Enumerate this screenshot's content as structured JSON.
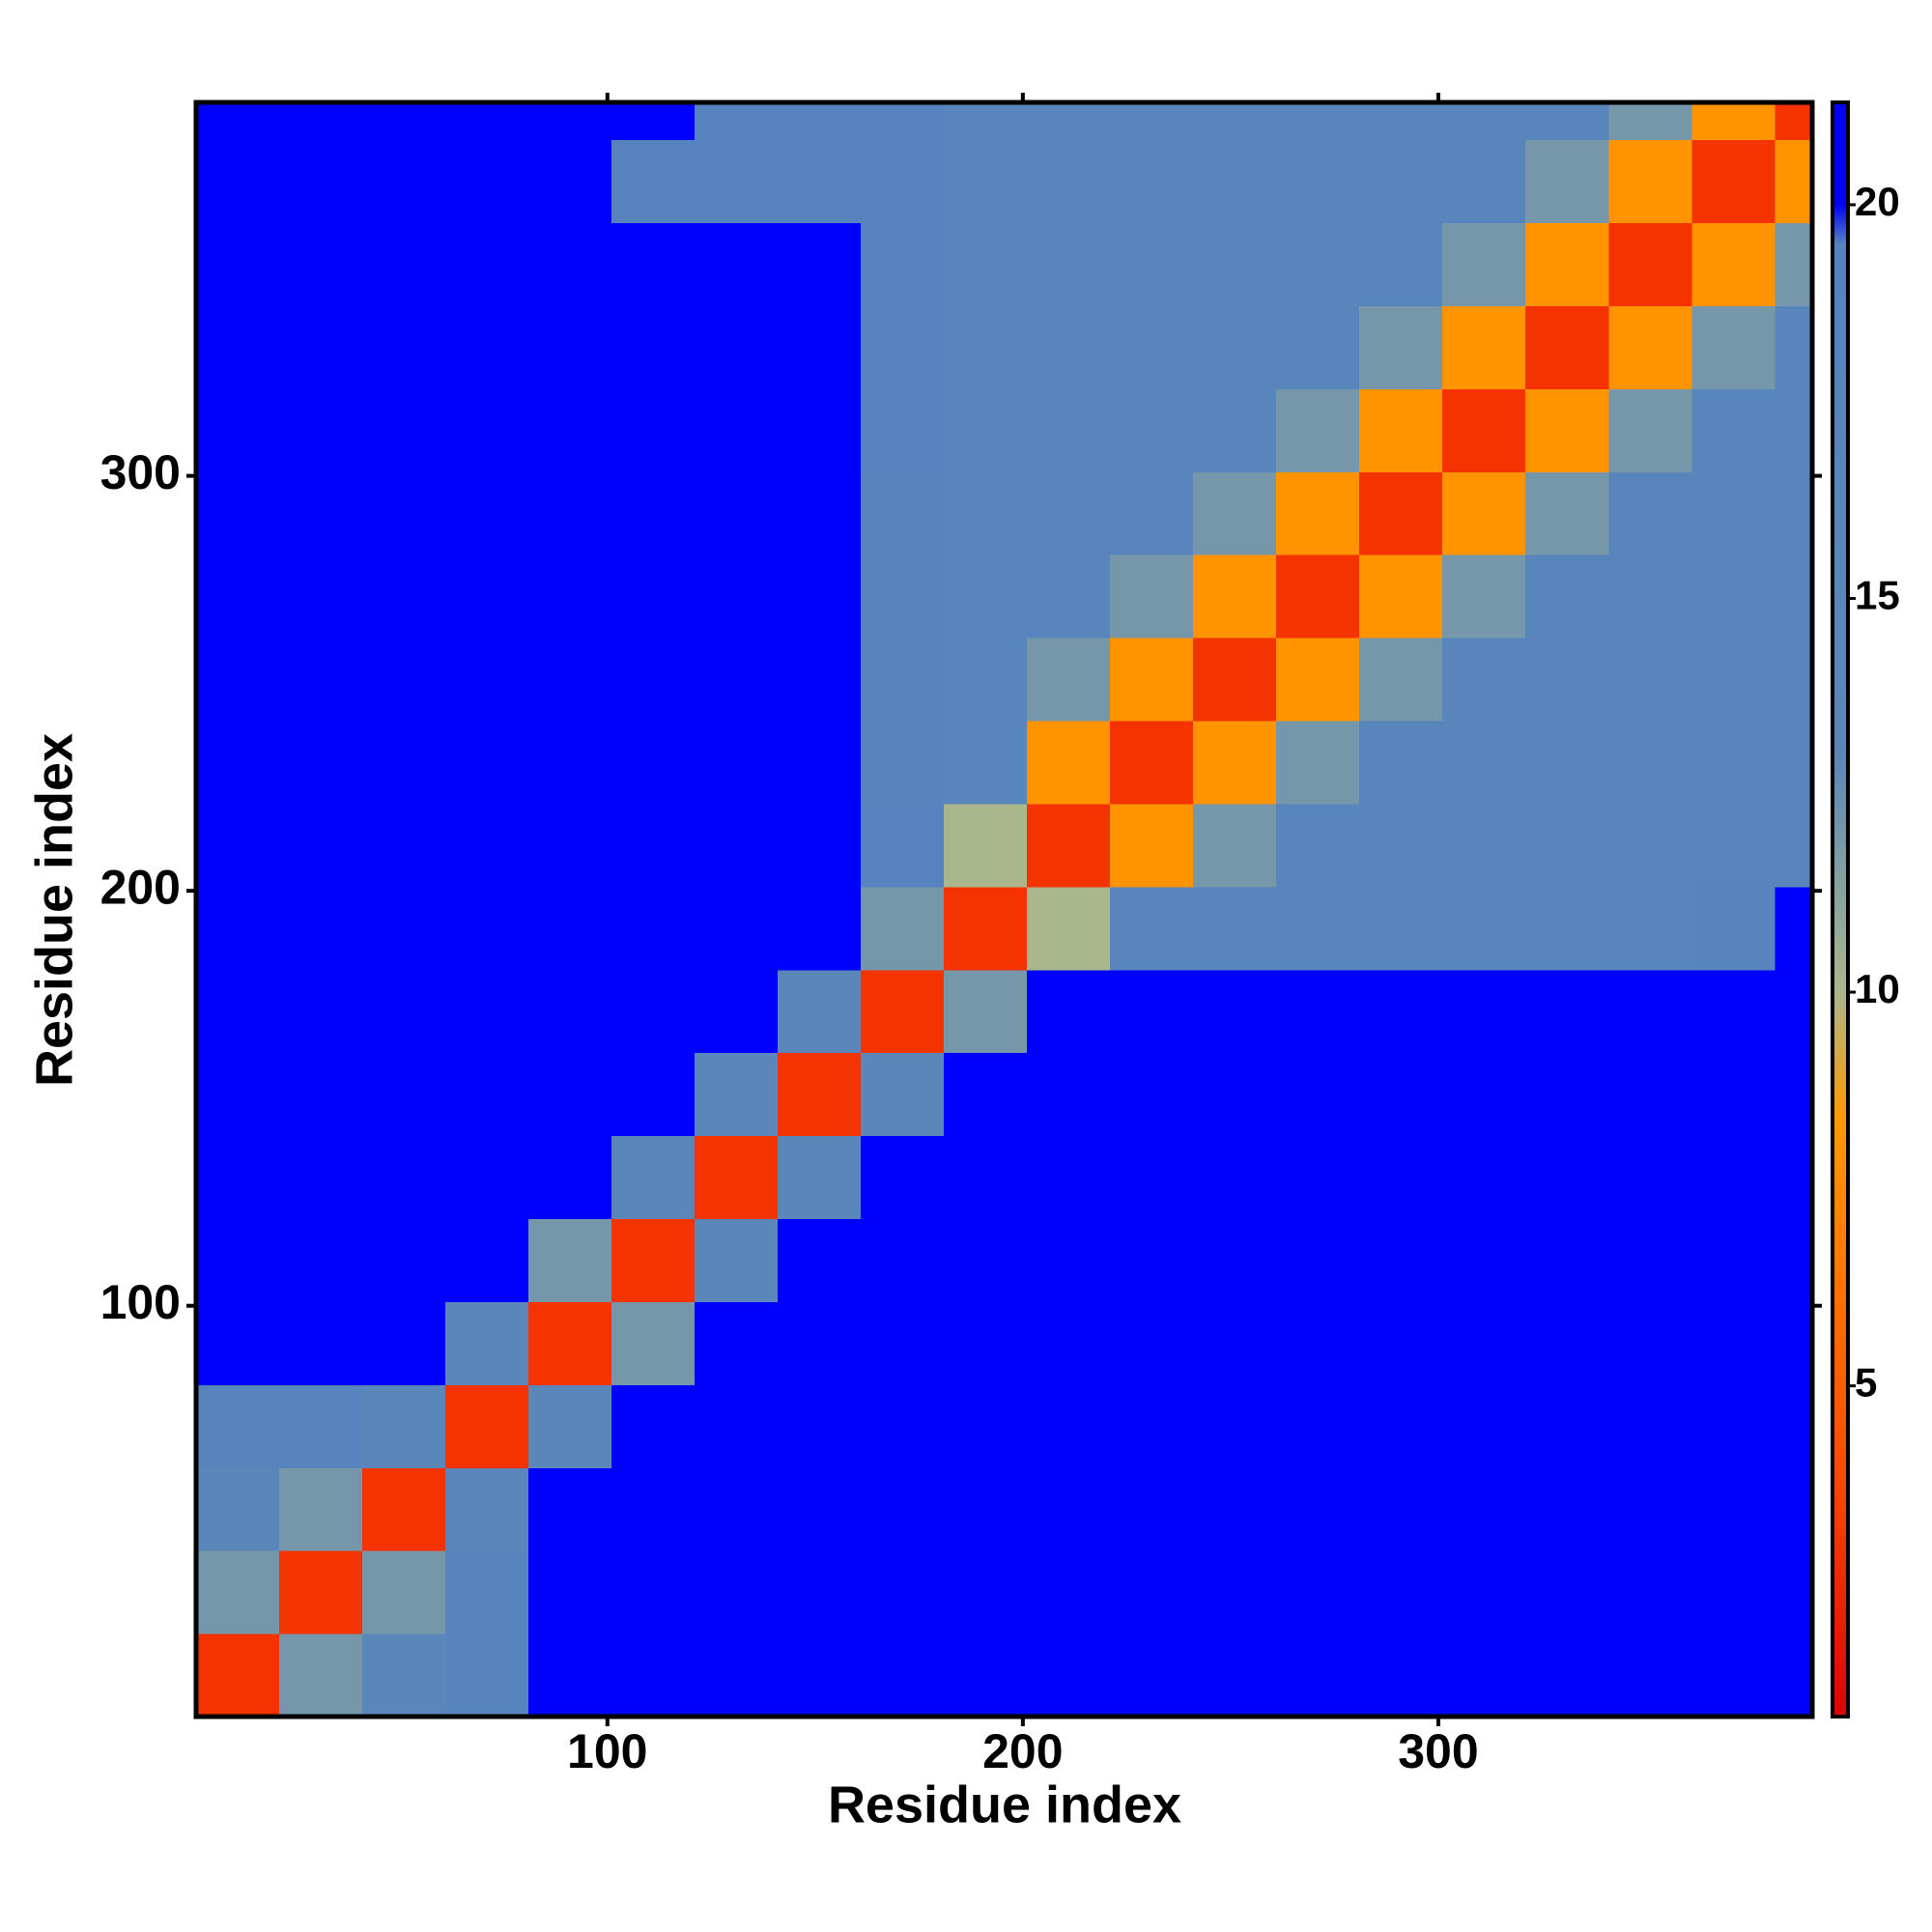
{
  "chart_data": {
    "type": "heatmap",
    "xlabel": "Residue index",
    "ylabel": "Residue index",
    "xbins": [
      1,
      21,
      41,
      61,
      81,
      101,
      121,
      141,
      161,
      181,
      201,
      221,
      241,
      261,
      281,
      301,
      321,
      341,
      361,
      381,
      390
    ],
    "ybins": [
      1,
      21,
      41,
      61,
      81,
      101,
      121,
      141,
      161,
      181,
      201,
      221,
      241,
      261,
      281,
      301,
      321,
      341,
      361,
      381,
      390
    ],
    "z": [
      [
        3,
        12,
        14,
        18,
        21,
        21,
        21,
        21,
        21,
        21,
        21,
        21,
        21,
        21,
        21,
        21,
        21,
        21,
        21,
        21
      ],
      [
        12,
        3,
        12,
        18,
        21,
        21,
        21,
        21,
        21,
        21,
        21,
        21,
        21,
        21,
        21,
        21,
        21,
        21,
        21,
        21
      ],
      [
        14,
        12,
        3,
        14,
        21,
        21,
        21,
        21,
        21,
        21,
        21,
        21,
        21,
        21,
        21,
        21,
        21,
        21,
        21,
        21
      ],
      [
        18,
        18,
        14,
        3,
        14,
        21,
        21,
        21,
        21,
        21,
        21,
        21,
        21,
        21,
        21,
        21,
        21,
        21,
        21,
        21
      ],
      [
        21,
        21,
        21,
        14,
        3,
        12,
        20,
        21,
        21,
        21,
        21,
        21,
        21,
        21,
        21,
        21,
        21,
        21,
        21,
        21
      ],
      [
        21,
        21,
        21,
        21,
        12,
        3,
        14,
        20,
        21,
        21,
        21,
        21,
        21,
        21,
        21,
        21,
        21,
        21,
        21,
        21
      ],
      [
        21,
        21,
        21,
        21,
        21,
        14,
        3,
        14,
        21,
        21,
        21,
        21,
        21,
        21,
        21,
        21,
        21,
        21,
        21,
        21
      ],
      [
        21,
        21,
        21,
        21,
        21,
        21,
        14,
        3,
        14,
        21,
        21,
        21,
        21,
        21,
        21,
        21,
        21,
        21,
        21,
        21
      ],
      [
        21,
        21,
        21,
        21,
        21,
        21,
        21,
        14,
        3,
        12,
        20,
        20,
        20,
        20,
        20,
        20,
        20,
        20,
        20,
        21
      ],
      [
        21,
        21,
        21,
        21,
        21,
        21,
        21,
        21,
        12,
        3,
        10,
        17,
        17,
        17,
        17,
        17,
        17,
        17,
        18,
        20
      ],
      [
        21,
        21,
        21,
        21,
        21,
        21,
        21,
        21,
        19,
        10,
        3,
        8,
        12,
        17,
        17,
        17,
        17,
        17,
        17,
        17
      ],
      [
        21,
        21,
        21,
        21,
        21,
        21,
        21,
        20,
        18,
        17,
        8,
        3,
        8,
        12,
        17,
        17,
        17,
        17,
        17,
        17
      ],
      [
        21,
        21,
        21,
        21,
        21,
        21,
        21,
        20,
        18,
        17,
        12,
        8,
        3,
        8,
        12,
        17,
        17,
        17,
        17,
        17
      ],
      [
        21,
        21,
        21,
        21,
        21,
        21,
        21,
        20,
        18,
        17,
        17,
        12,
        8,
        3,
        8,
        12,
        17,
        17,
        17,
        17
      ],
      [
        21,
        21,
        21,
        21,
        20,
        20,
        20,
        20,
        18,
        17,
        17,
        17,
        12,
        8,
        3,
        8,
        12,
        17,
        17,
        17
      ],
      [
        21,
        21,
        21,
        21,
        20,
        20,
        20,
        20,
        19,
        17,
        17,
        17,
        17,
        12,
        8,
        3,
        8,
        12,
        17,
        17
      ],
      [
        21,
        21,
        21,
        21,
        20,
        20,
        20,
        20,
        19,
        17,
        17,
        17,
        17,
        17,
        12,
        8,
        3,
        8,
        12,
        17
      ],
      [
        21,
        21,
        21,
        21,
        20,
        20,
        20,
        20,
        19,
        17,
        17,
        17,
        17,
        17,
        17,
        12,
        8,
        3,
        8,
        12
      ],
      [
        21,
        21,
        21,
        21,
        21,
        19,
        19,
        19,
        19,
        17,
        17,
        17,
        17,
        17,
        17,
        17,
        12,
        8,
        3,
        8
      ],
      [
        21,
        21,
        21,
        21,
        21,
        21,
        19,
        19,
        19,
        17,
        17,
        17,
        17,
        17,
        17,
        17,
        17,
        12,
        8,
        3
      ]
    ],
    "xlim": [
      1,
      390
    ],
    "ylim": [
      1,
      390
    ],
    "xticks": [
      100,
      200,
      300
    ],
    "yticks": [
      100,
      200,
      300
    ],
    "zlim": [
      0.8,
      21.3
    ],
    "zticks": [
      5,
      10,
      15,
      20
    ],
    "colorscale": [
      {
        "value": 0.8,
        "color": "#e00000"
      },
      {
        "value": 4,
        "color": "#ff4a00"
      },
      {
        "value": 8.4,
        "color": "#ff9a00"
      },
      {
        "value": 10,
        "color": "#aab78c"
      },
      {
        "value": 13,
        "color": "#5b87b8"
      },
      {
        "value": 19.5,
        "color": "#5683bd"
      },
      {
        "value": 20,
        "color": "#0000ff"
      },
      {
        "value": 21.3,
        "color": "#0000ff"
      }
    ]
  }
}
